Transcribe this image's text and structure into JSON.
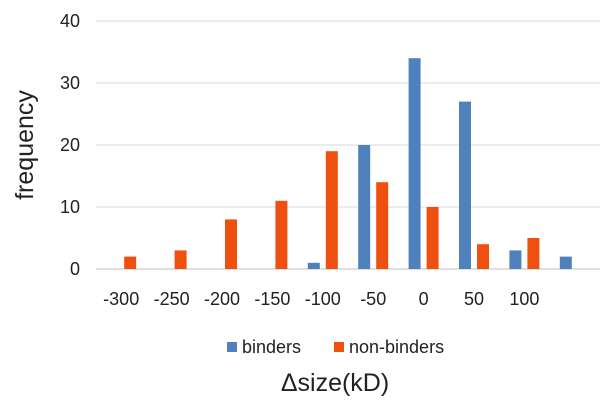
{
  "chart_data": {
    "type": "bar",
    "title": "",
    "xlabel": "Δsize(kD)",
    "ylabel": "frequency",
    "ylim": [
      0,
      40
    ],
    "yticks": [
      0,
      10,
      20,
      30,
      40
    ],
    "grid": "horizontal",
    "legend_position": "bottom",
    "categories": [
      "-300",
      "-250",
      "-200",
      "-150",
      "-100",
      "-50",
      "0",
      "50",
      "100",
      ""
    ],
    "series": [
      {
        "name": "binders",
        "color": "#4f81bd",
        "values": [
          0,
          0,
          0,
          0,
          1,
          20,
          34,
          27,
          3,
          2
        ]
      },
      {
        "name": "non-binders",
        "color": "#f0500f",
        "values": [
          2,
          3,
          8,
          11,
          19,
          14,
          10,
          4,
          5,
          0
        ]
      }
    ]
  }
}
